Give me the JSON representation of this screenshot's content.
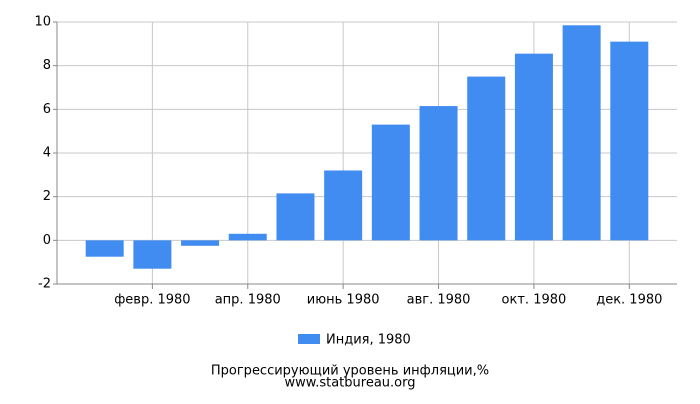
{
  "chart_data": {
    "type": "bar",
    "title": "Прогрессирующий уровень инфляции,%",
    "source": "www.statbureau.org",
    "categories": [
      null,
      "февр. 1980",
      null,
      "апр. 1980",
      null,
      "июнь 1980",
      null,
      "авг. 1980",
      null,
      "окт. 1980",
      null,
      "дек. 1980"
    ],
    "series": [
      {
        "name": "Индия, 1980",
        "color": "#418cf0",
        "values": [
          -0.75,
          -1.3,
          -0.25,
          0.3,
          2.15,
          3.2,
          5.3,
          6.15,
          7.5,
          8.55,
          9.85,
          9.1
        ]
      }
    ],
    "ylim": [
      -2,
      10
    ],
    "yticks": [
      -2,
      0,
      2,
      4,
      6,
      8,
      10
    ],
    "grid": true,
    "legend": "bottom"
  }
}
